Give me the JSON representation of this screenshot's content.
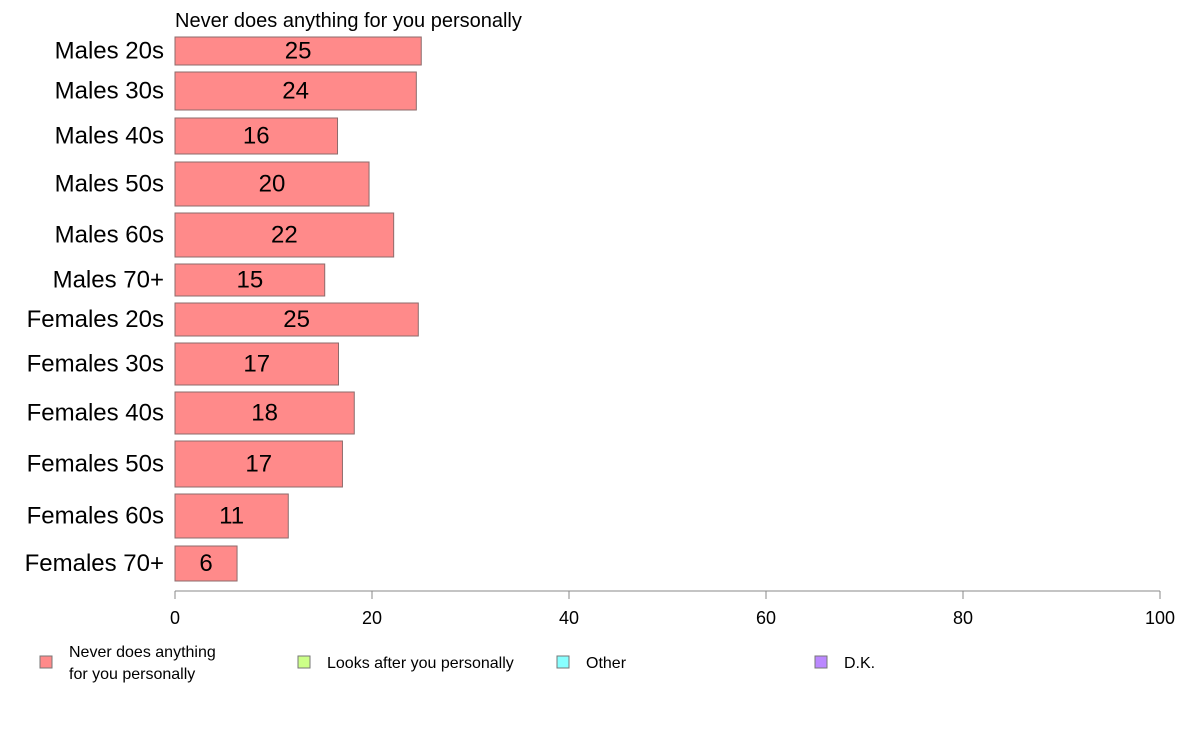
{
  "chart_data": {
    "type": "bar",
    "orientation": "horizontal",
    "title": "Never does anything for you personally",
    "categories": [
      "Males 20s",
      "Males 30s",
      "Males 40s",
      "Males 50s",
      "Males 60s",
      "Males 70+",
      "Females 20s",
      "Females 30s",
      "Females 40s",
      "Females 50s",
      "Females 60s",
      "Females 70+"
    ],
    "series": [
      {
        "name": "Never does anything for you personally",
        "values": [
          25,
          24,
          16,
          20,
          22,
          15,
          25,
          17,
          18,
          17,
          11,
          6
        ],
        "display_values": [
          25.0,
          24.5,
          16.5,
          19.7,
          22.2,
          15.2,
          24.7,
          16.6,
          18.2,
          17.0,
          11.5,
          6.3
        ],
        "color": "#ff8a8a"
      }
    ],
    "xlim": [
      0,
      100
    ],
    "xticks": [
      0,
      20,
      40,
      60,
      80,
      100
    ],
    "xlabel": "",
    "ylabel": "",
    "grid": false,
    "legend": {
      "placement": "bottom",
      "entries": [
        {
          "lines": [
            "Never does anything",
            "for you personally"
          ],
          "color": "#ff8a8a"
        },
        {
          "lines": [
            "Looks after you personally"
          ],
          "color": "#ccff88"
        },
        {
          "lines": [
            "Other"
          ],
          "color": "#88ffff"
        },
        {
          "lines": [
            "D.K."
          ],
          "color": "#bb88ff"
        }
      ]
    }
  }
}
